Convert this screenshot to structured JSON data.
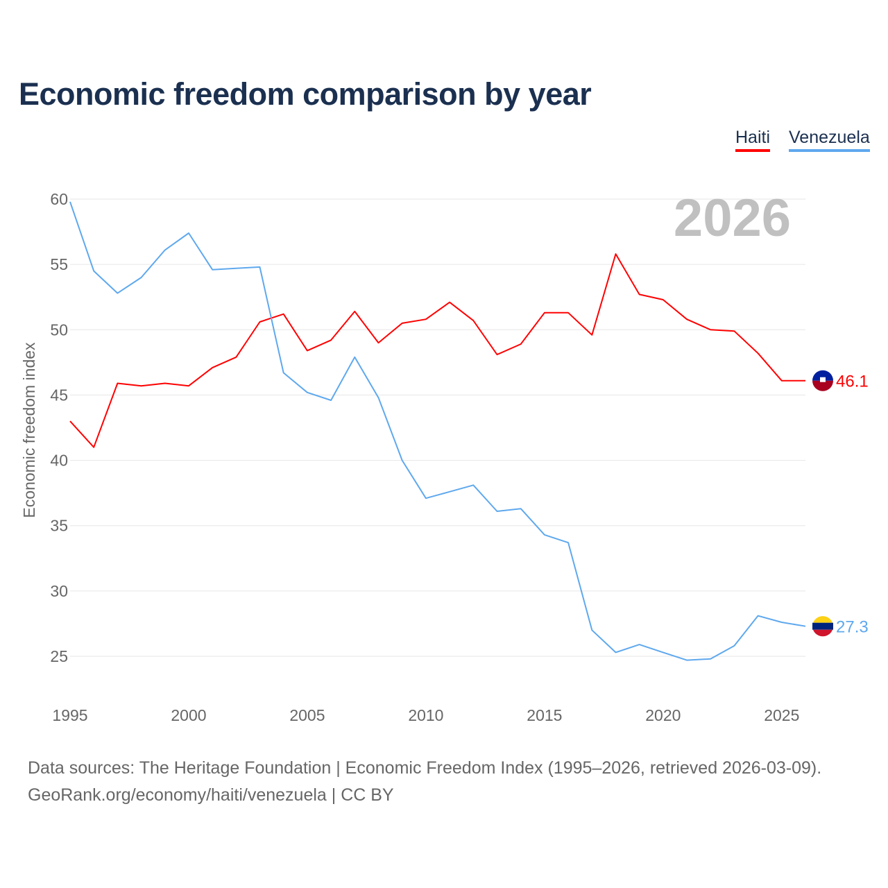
{
  "chart_data": {
    "type": "line",
    "title": "Economic freedom comparison by year",
    "xlabel": "",
    "ylabel": "Economic freedom index",
    "year_watermark": "2026",
    "xlim": [
      1995,
      2026
    ],
    "ylim": [
      22.1,
      60
    ],
    "grid": true,
    "legend_position": "top-right",
    "x_ticks": [
      1995,
      2000,
      2005,
      2010,
      2015,
      2020,
      2025
    ],
    "y_ticks": [
      25,
      30,
      35,
      40,
      45,
      50,
      55,
      60
    ],
    "x": [
      1995,
      1996,
      1997,
      1998,
      1999,
      2000,
      2001,
      2002,
      2003,
      2004,
      2005,
      2006,
      2007,
      2008,
      2009,
      2010,
      2011,
      2012,
      2013,
      2014,
      2015,
      2016,
      2017,
      2018,
      2019,
      2020,
      2021,
      2022,
      2023,
      2024,
      2025,
      2026
    ],
    "series": [
      {
        "name": "Haiti",
        "color": "#ff0000",
        "end_label": "46.1",
        "values": [
          43.0,
          41.0,
          45.9,
          45.7,
          45.9,
          45.7,
          47.1,
          47.9,
          50.6,
          51.2,
          48.4,
          49.2,
          51.4,
          49.0,
          50.5,
          50.8,
          52.1,
          50.7,
          48.1,
          48.9,
          51.3,
          51.3,
          49.6,
          55.8,
          52.7,
          52.3,
          50.8,
          50.0,
          49.9,
          48.2,
          46.1,
          46.1
        ]
      },
      {
        "name": "Venezuela",
        "color": "#5ea8ee",
        "end_label": "27.3",
        "values": [
          59.8,
          54.5,
          52.8,
          54.0,
          56.1,
          57.4,
          54.6,
          54.7,
          54.8,
          46.7,
          45.2,
          44.6,
          47.9,
          44.8,
          40.0,
          37.1,
          37.6,
          38.1,
          36.1,
          36.3,
          34.3,
          33.7,
          27.0,
          25.3,
          25.9,
          25.3,
          24.7,
          24.8,
          25.8,
          28.1,
          27.6,
          27.3
        ]
      }
    ]
  },
  "footer": {
    "line1": "Data sources: The Heritage Foundation | Economic Freedom Index (1995–2026, retrieved 2026-03-09).",
    "line2": "GeoRank.org/economy/haiti/venezuela | CC BY"
  }
}
